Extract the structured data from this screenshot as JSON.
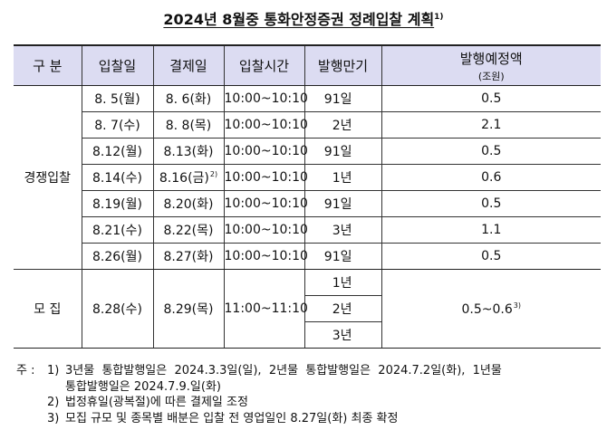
{
  "title": {
    "text": "2024년 8월중 통화안정증권 정례입찰 계획",
    "footnote_mark": "1)"
  },
  "table": {
    "headers": [
      {
        "label": "구 분"
      },
      {
        "label": "입찰일"
      },
      {
        "label": "결제일"
      },
      {
        "label": "입찰시간"
      },
      {
        "label": "발행만기"
      },
      {
        "label": "발행예정액",
        "sub": "(조원)"
      }
    ],
    "competitive": {
      "category": "경쟁입찰",
      "rows": [
        {
          "bid_date": "8. 5(월)",
          "settle_date": "8. 6(화)",
          "settle_note": "",
          "time": "10:00~10:10",
          "maturity": "91일",
          "amount": "0.5"
        },
        {
          "bid_date": "8. 7(수)",
          "settle_date": "8. 8(목)",
          "settle_note": "",
          "time": "10:00~10:10",
          "maturity": "2년",
          "amount": "2.1"
        },
        {
          "bid_date": "8.12(월)",
          "settle_date": "8.13(화)",
          "settle_note": "",
          "time": "10:00~10:10",
          "maturity": "91일",
          "amount": "0.5"
        },
        {
          "bid_date": "8.14(수)",
          "settle_date": "8.16(금)",
          "settle_note": "2)",
          "time": "10:00~10:10",
          "maturity": "1년",
          "amount": "0.6"
        },
        {
          "bid_date": "8.19(월)",
          "settle_date": "8.20(화)",
          "settle_note": "",
          "time": "10:00~10:10",
          "maturity": "91일",
          "amount": "0.5"
        },
        {
          "bid_date": "8.21(수)",
          "settle_date": "8.22(목)",
          "settle_note": "",
          "time": "10:00~10:10",
          "maturity": "3년",
          "amount": "1.1"
        },
        {
          "bid_date": "8.26(월)",
          "settle_date": "8.27(화)",
          "settle_note": "",
          "time": "10:00~10:10",
          "maturity": "91일",
          "amount": "0.5"
        }
      ]
    },
    "offering": {
      "category": "모 집",
      "bid_date": "8.28(수)",
      "settle_date": "8.29(목)",
      "time": "11:00~11:10",
      "maturities": [
        "1년",
        "2년",
        "3년"
      ],
      "amount": "0.5~0.6",
      "amount_note": "3)"
    }
  },
  "notes": {
    "label": "주 :",
    "items": [
      {
        "num": "1)",
        "lines": [
          "3년물  통합발행일은  2024.3.3일(일),  2년물  통합발행일은  2024.7.2일(화),  1년물",
          "통합발행일은 2024.7.9.일(화)"
        ]
      },
      {
        "num": "2)",
        "lines": [
          "법정휴일(광복절)에 따른 결제일 조정"
        ]
      },
      {
        "num": "3)",
        "lines": [
          "모집 규모 및 종목별 배분은 입찰 전 영업일인 8.27일(화) 최종 확정"
        ]
      }
    ]
  }
}
